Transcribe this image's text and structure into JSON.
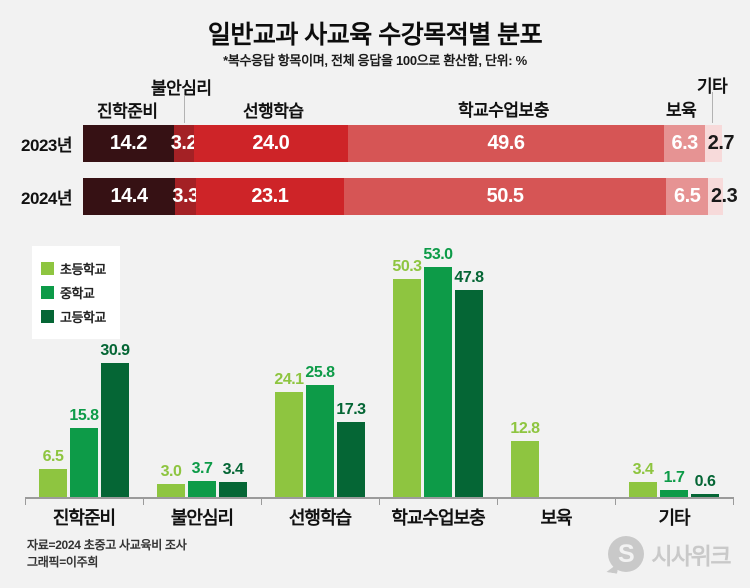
{
  "page": {
    "title": "일반교과 사교육 수강목적별 분포",
    "subtitle": "*복수응답 항목이며, 전체 응답을 100으로 환산함, 단위: %",
    "source_line1": "자료=2024 초중고 사교육비 조사",
    "source_line2": "그래픽=이주희",
    "logo_letter": "S",
    "logo_text": "시사위크"
  },
  "colors": {
    "background": "#f2f2f2",
    "axis": "#9b9b9b",
    "connector_line": "#b3b3b3",
    "value_outside": "#1a1a1a",
    "logo_gray": "#c9c9c9"
  },
  "chart_data": [
    {
      "type": "bar",
      "orientation": "horizontal-stacked",
      "title": "연도별 수강목적 분포 (스택 바)",
      "categories": [
        "진학준비",
        "불안심리",
        "선행학습",
        "학교수업보충",
        "보육",
        "기타"
      ],
      "series": [
        {
          "name": "2023년",
          "values": [
            14.2,
            3.2,
            24.0,
            49.6,
            6.3,
            2.7
          ]
        },
        {
          "name": "2024년",
          "values": [
            14.4,
            3.3,
            23.1,
            50.5,
            6.5,
            2.3
          ]
        }
      ],
      "segment_colors": [
        "#361114",
        "#a42125",
        "#ce2428",
        "#d65555",
        "#e69393",
        "#f7dada"
      ],
      "xlim": [
        0,
        100
      ],
      "value_labels": "inside-white, last value dark outside"
    },
    {
      "type": "bar",
      "orientation": "vertical-grouped",
      "title": "학교급별 수강목적 분포",
      "categories": [
        "진학준비",
        "불안심리",
        "선행학습",
        "학교수업보충",
        "보육",
        "기타"
      ],
      "series": [
        {
          "name": "초등학교",
          "color": "#8ec540",
          "values": [
            6.5,
            3.0,
            24.1,
            50.3,
            12.8,
            3.4
          ]
        },
        {
          "name": "중학교",
          "color": "#0d9b48",
          "values": [
            15.8,
            3.7,
            25.8,
            53.0,
            null,
            1.7
          ]
        },
        {
          "name": "고등학교",
          "color": "#056635",
          "values": [
            30.9,
            3.4,
            17.3,
            47.8,
            null,
            0.6
          ]
        }
      ],
      "ylim": [
        0,
        56
      ],
      "legend_position": "top-left",
      "grid": false,
      "value_labels": "above bars, colored to match series"
    }
  ]
}
